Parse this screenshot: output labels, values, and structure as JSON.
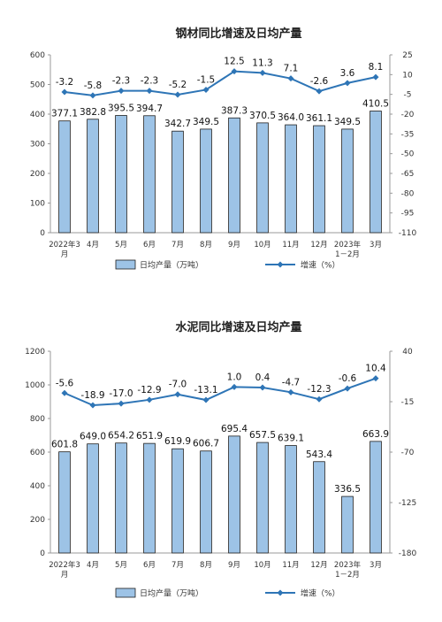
{
  "chart_data": [
    {
      "type": "bar",
      "title": "钢材同比增速及日均产量",
      "categories": [
        "2022年3\n月",
        "4月",
        "5月",
        "6月",
        "7月",
        "8月",
        "9月",
        "10月",
        "11月",
        "12月",
        "2023年\n1－2月",
        "3月"
      ],
      "series": [
        {
          "name": "日均产量（万吨）",
          "type": "bar",
          "axis": "left",
          "values": [
            377.1,
            382.8,
            395.5,
            394.7,
            342.7,
            349.5,
            387.3,
            370.5,
            364.0,
            361.1,
            349.5,
            410.5
          ],
          "labels": [
            "377.1",
            "382.8",
            "395.5",
            "394.7",
            "342.7",
            "349.5",
            "387.3",
            "370.5",
            "364.0",
            "361.1",
            "349.5",
            "410.5"
          ]
        },
        {
          "name": "增速（%）",
          "type": "line",
          "axis": "right",
          "values": [
            -3.2,
            -5.8,
            -2.3,
            -2.3,
            -5.2,
            -1.5,
            12.5,
            11.3,
            7.1,
            -2.6,
            3.6,
            8.1
          ],
          "labels": [
            "-3.2",
            "-5.8",
            "-2.3",
            "-2.3",
            "-5.2",
            "-1.5",
            "12.5",
            "11.3",
            "7.1",
            "-2.6",
            "3.6",
            "8.1"
          ]
        }
      ],
      "y_left": {
        "min": 0,
        "max": 600,
        "ticks": [
          "0",
          "100",
          "200",
          "300",
          "400",
          "500",
          "600"
        ]
      },
      "y_right": {
        "min": -110,
        "max": 25,
        "ticks": [
          "25",
          "10",
          "-5",
          "-20",
          "-35",
          "-50",
          "-65",
          "-80",
          "-95",
          "-110"
        ]
      },
      "legend_position": "bottom",
      "colors": {
        "bar_fill": "#9dc3e6",
        "bar_stroke": "#1f1f1f",
        "line": "#2e75b6"
      }
    },
    {
      "type": "bar",
      "title": "水泥同比增速及日均产量",
      "categories": [
        "2022年3\n月",
        "4月",
        "5月",
        "6月",
        "7月",
        "8月",
        "9月",
        "10月",
        "11月",
        "12月",
        "2023年\n1－2月",
        "3月"
      ],
      "series": [
        {
          "name": "日均产量（万吨）",
          "type": "bar",
          "axis": "left",
          "values": [
            601.8,
            649.0,
            654.2,
            651.9,
            619.9,
            606.7,
            695.4,
            657.5,
            639.1,
            543.4,
            336.5,
            663.9
          ],
          "labels": [
            "601.8",
            "649.0",
            "654.2",
            "651.9",
            "619.9",
            "606.7",
            "695.4",
            "657.5",
            "639.1",
            "543.4",
            "336.5",
            "663.9"
          ]
        },
        {
          "name": "增速（%）",
          "type": "line",
          "axis": "right",
          "values": [
            -5.6,
            -18.9,
            -17.0,
            -12.9,
            -7.0,
            -13.1,
            1.0,
            0.4,
            -4.7,
            -12.3,
            -0.6,
            10.4
          ],
          "labels": [
            "-5.6",
            "-18.9",
            "-17.0",
            "-12.9",
            "-7.0",
            "-13.1",
            "1.0",
            "0.4",
            "-4.7",
            "-12.3",
            "-0.6",
            "10.4"
          ]
        }
      ],
      "y_left": {
        "min": 0,
        "max": 1200,
        "ticks": [
          "0",
          "200",
          "400",
          "600",
          "800",
          "1000",
          "1200"
        ]
      },
      "y_right": {
        "min": -180,
        "max": 40,
        "ticks": [
          "40",
          "-15",
          "-70",
          "-125",
          "-180"
        ]
      },
      "legend_position": "bottom",
      "colors": {
        "bar_fill": "#9dc3e6",
        "bar_stroke": "#1f1f1f",
        "line": "#2e75b6"
      }
    }
  ]
}
